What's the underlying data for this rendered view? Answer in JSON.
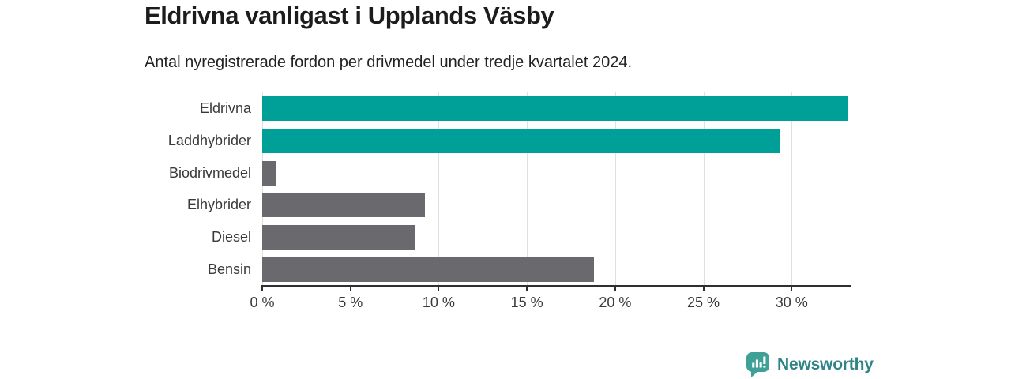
{
  "header": {
    "title": "Eldrivna vanligast i Upplands Väsby",
    "subtitle": "Antal nyregistrerade fordon per drivmedel under tredje kvartalet 2024."
  },
  "chart_data": {
    "type": "bar",
    "orientation": "horizontal",
    "title": "Eldrivna vanligast i Upplands Väsby",
    "subtitle": "Antal nyregistrerade fordon per drivmedel under tredje kvartalet 2024.",
    "categories": [
      "Eldrivna",
      "Laddhybrider",
      "Biodrivmedel",
      "Elhybrider",
      "Diesel",
      "Bensin"
    ],
    "values": [
      33.2,
      29.3,
      0.8,
      9.2,
      8.7,
      18.8
    ],
    "unit": "%",
    "bar_colors": [
      "#00a099",
      "#00a099",
      "#6a6a6e",
      "#6a6a6e",
      "#6a6a6e",
      "#6a6a6e"
    ],
    "x_ticks": [
      0,
      5,
      10,
      15,
      20,
      25,
      30
    ],
    "x_tick_labels": [
      "0 %",
      "5 %",
      "10 %",
      "15 %",
      "20 %",
      "25 %",
      "30 %"
    ],
    "xlim": [
      0,
      33.3
    ],
    "xlabel": "",
    "ylabel": "",
    "grid": true,
    "legend": false
  },
  "colors": {
    "highlight_bar": "#00a099",
    "default_bar": "#6a6a6e",
    "gridline": "#e0e0e0",
    "axis": "#2f2f2f",
    "tick_text": "#3a3a3a",
    "title_text": "#1c1c1c"
  },
  "branding": {
    "logo_text": "Newsworthy",
    "logo_text_color": "#2e8486",
    "logo_icon_color": "#3fa097",
    "logo_icon": "speech-bubble-bar-chart-exclamation"
  }
}
